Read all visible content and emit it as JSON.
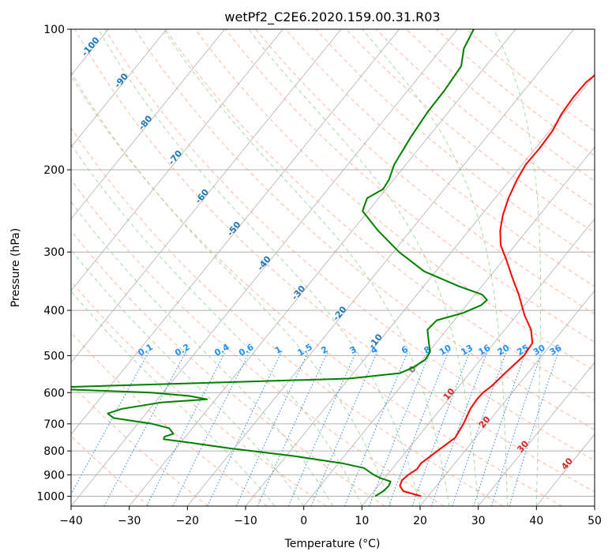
{
  "chart_data": {
    "type": "line",
    "title": "wetPf2_C2E6.2020.159.00.31.R03",
    "xlabel": "Temperature (°C)",
    "ylabel": "Pressure (hPa)",
    "xlim": [
      -40,
      50
    ],
    "ylim": [
      1050,
      100
    ],
    "y_scale": "log",
    "x_ticks": [
      -40,
      -30,
      -20,
      -10,
      0,
      10,
      20,
      30,
      40,
      50
    ],
    "y_ticks": [
      100,
      200,
      300,
      400,
      500,
      600,
      700,
      800,
      900,
      1000
    ],
    "grid": "horizontal at pressure ticks",
    "series": [
      {
        "role": "temperature",
        "color": "#ff0000",
        "points": [
          [
            1000,
            18.8
          ],
          [
            975,
            15.0
          ],
          [
            950,
            13.7
          ],
          [
            925,
            13.3
          ],
          [
            900,
            13.6
          ],
          [
            875,
            14.3
          ],
          [
            850,
            14.2
          ],
          [
            800,
            15.3
          ],
          [
            750,
            16.5
          ],
          [
            700,
            16.0
          ],
          [
            650,
            15.1
          ],
          [
            620,
            14.9
          ],
          [
            600,
            15.0
          ],
          [
            580,
            15.6
          ],
          [
            550,
            16.0
          ],
          [
            500,
            16.9
          ],
          [
            470,
            16.6
          ],
          [
            440,
            14.5
          ],
          [
            410,
            11.4
          ],
          [
            390,
            9.5
          ],
          [
            370,
            7.5
          ],
          [
            340,
            4.0
          ],
          [
            310,
            0.3
          ],
          [
            290,
            -2.5
          ],
          [
            270,
            -4.6
          ],
          [
            250,
            -6.3
          ],
          [
            230,
            -7.7
          ],
          [
            210,
            -8.8
          ],
          [
            195,
            -9.4
          ],
          [
            180,
            -9.3
          ],
          [
            165,
            -9.5
          ],
          [
            152,
            -10.3
          ],
          [
            140,
            -10.6
          ],
          [
            130,
            -10.5
          ],
          [
            122,
            -9.6
          ],
          [
            116,
            -7.5
          ],
          [
            112,
            -5.0
          ],
          [
            106,
            -3.5
          ],
          [
            100,
            -3.0
          ]
        ]
      },
      {
        "role": "dewpoint",
        "color": "#008000",
        "points": [
          [
            1000,
            10.9
          ],
          [
            975,
            11.6
          ],
          [
            950,
            11.8
          ],
          [
            930,
            11.5
          ],
          [
            915,
            9.3
          ],
          [
            900,
            7.7
          ],
          [
            870,
            5.0
          ],
          [
            850,
            0.6
          ],
          [
            820,
            -8.8
          ],
          [
            790,
            -20.7
          ],
          [
            770,
            -27.7
          ],
          [
            755,
            -33.4
          ],
          [
            745,
            -33.6
          ],
          [
            735,
            -32.5
          ],
          [
            715,
            -34.0
          ],
          [
            700,
            -37.5
          ],
          [
            680,
            -45.0
          ],
          [
            665,
            -46.6
          ],
          [
            650,
            -44.8
          ],
          [
            630,
            -39.0
          ],
          [
            620,
            -31.5
          ],
          [
            610,
            -35.0
          ],
          [
            600,
            -42.0
          ],
          [
            590,
            -58.0
          ],
          [
            585,
            -60.0
          ],
          [
            575,
            -40.0
          ],
          [
            560,
            -10.0
          ],
          [
            545,
            -2.0
          ],
          [
            530,
            -0.5
          ],
          [
            510,
            0.5
          ],
          [
            490,
            0.2
          ],
          [
            470,
            -1.2
          ],
          [
            440,
            -3.3
          ],
          [
            420,
            -3.0
          ],
          [
            405,
            0.5
          ],
          [
            390,
            2.5
          ],
          [
            380,
            2.8
          ],
          [
            370,
            1.2
          ],
          [
            355,
            -4.0
          ],
          [
            330,
            -12.0
          ],
          [
            300,
            -19.0
          ],
          [
            270,
            -25.6
          ],
          [
            245,
            -31.0
          ],
          [
            230,
            -32.0
          ],
          [
            220,
            -30.5
          ],
          [
            210,
            -30.8
          ],
          [
            195,
            -32.0
          ],
          [
            170,
            -33.0
          ],
          [
            150,
            -33.6
          ],
          [
            135,
            -33.7
          ],
          [
            120,
            -34.2
          ],
          [
            110,
            -36.2
          ],
          [
            100,
            -37.2
          ]
        ]
      }
    ],
    "dry_adiabats_theta_c": [
      -30,
      -20,
      -10,
      0,
      10,
      20,
      30,
      40,
      50,
      60,
      70,
      80,
      90,
      100,
      110,
      120,
      130,
      140,
      150,
      160,
      170,
      180
    ],
    "moist_adiabats_start_c": [
      -5,
      0,
      5,
      10,
      15,
      20,
      25,
      30,
      35,
      40
    ],
    "mixing_ratio_labels": [
      "0.1",
      "0.2",
      "0.4",
      "0.6",
      "1",
      "1.5",
      "2",
      "3",
      "4",
      "6",
      "8",
      "10",
      "13",
      "16",
      "20",
      "25",
      "30",
      "36"
    ],
    "isotherm_labels_blue": [
      "-100",
      "-90",
      "-80",
      "-70",
      "-60",
      "-50",
      "-40",
      "-30",
      "-20",
      "-10"
    ],
    "isotherm_label_gray": "0",
    "isotherm_labels_red": [
      "10",
      "20",
      "30",
      "40"
    ],
    "colors": {
      "isotherm_line": "#b0b0b0",
      "dry_adiabat": "#ff9f80",
      "moist_adiabat": "#88c888",
      "mixing_ratio": "#3a8ee6",
      "isotherm_label_cold": "#1f77b4",
      "isotherm_label_warm": "#d62728",
      "isotherm_label_zero": "#808080",
      "mixing_ratio_label": "#1e90ff",
      "pressure_grid": "#b0b0b0"
    }
  }
}
